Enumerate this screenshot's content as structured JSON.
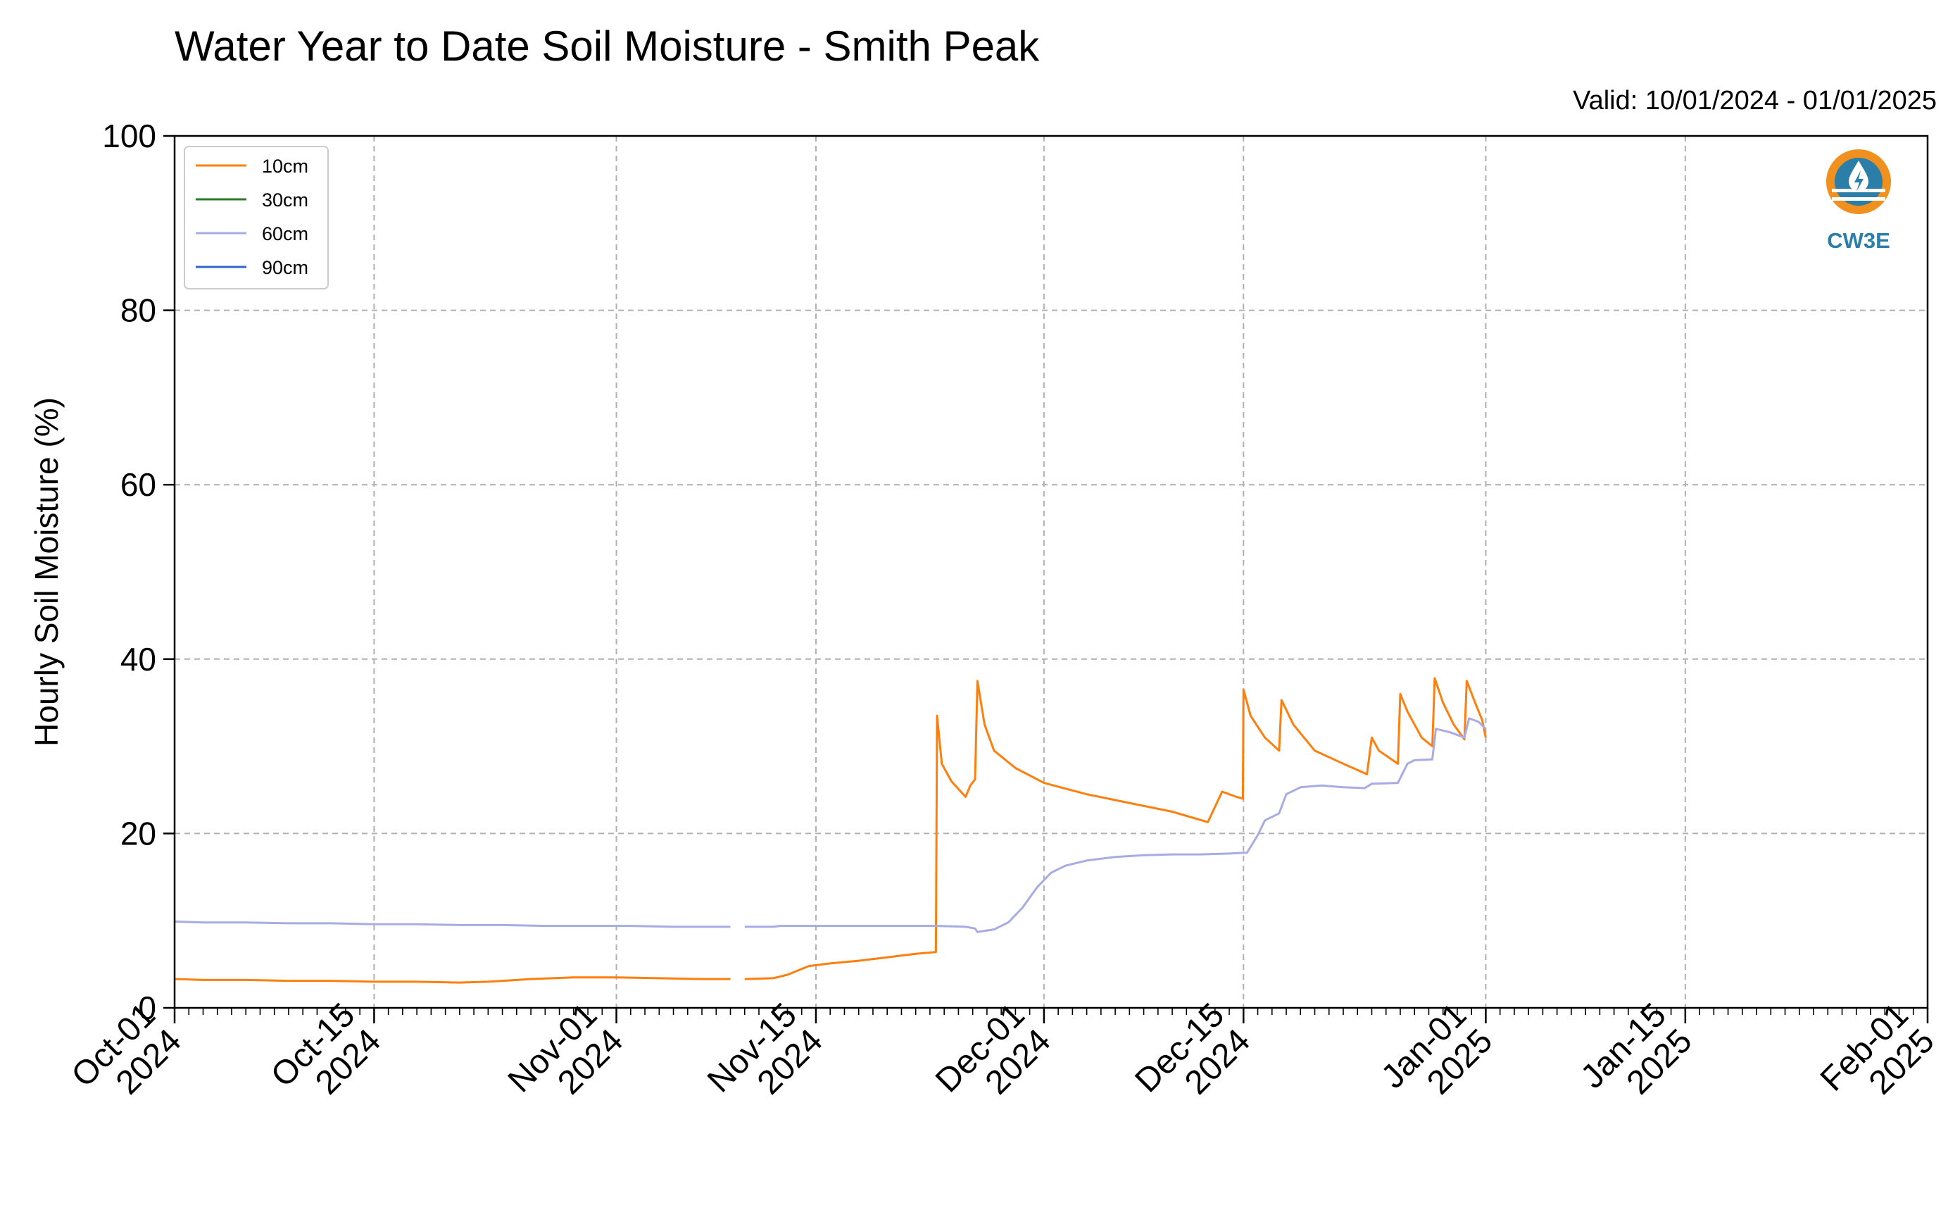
{
  "chart_data": {
    "type": "line",
    "title": "Water Year to Date Soil Moisture - Smith Peak",
    "valid_label": "Valid: 10/01/2024 - 01/01/2025",
    "ylabel": "Hourly Soil Moisture (%)",
    "xlabel": "",
    "ylim": [
      0,
      100
    ],
    "y_ticks": [
      0,
      20,
      40,
      60,
      80,
      100
    ],
    "xlim": [
      "2024-10-01",
      "2025-02-01"
    ],
    "x_ticks": [
      {
        "date": "2024-10-01",
        "line1": "Oct-01",
        "line2": "2024"
      },
      {
        "date": "2024-10-15",
        "line1": "Oct-15",
        "line2": "2024"
      },
      {
        "date": "2024-11-01",
        "line1": "Nov-01",
        "line2": "2024"
      },
      {
        "date": "2024-11-15",
        "line1": "Nov-15",
        "line2": "2024"
      },
      {
        "date": "2024-12-01",
        "line1": "Dec-01",
        "line2": "2024"
      },
      {
        "date": "2024-12-15",
        "line1": "Dec-15",
        "line2": "2024"
      },
      {
        "date": "2025-01-01",
        "line1": "Jan-01",
        "line2": "2025"
      },
      {
        "date": "2025-01-15",
        "line1": "Jan-15",
        "line2": "2025"
      },
      {
        "date": "2025-02-01",
        "line1": "Feb-01",
        "line2": "2025"
      }
    ],
    "grid": true,
    "legend_position": "top-left",
    "series": [
      {
        "name": "10cm",
        "color": "#ff7f0e",
        "points": [
          [
            "2024-10-01T00",
            3.3
          ],
          [
            "2024-10-03T00",
            3.2
          ],
          [
            "2024-10-06T00",
            3.2
          ],
          [
            "2024-10-09T00",
            3.1
          ],
          [
            "2024-10-12T00",
            3.1
          ],
          [
            "2024-10-15T00",
            3.0
          ],
          [
            "2024-10-18T00",
            3.0
          ],
          [
            "2024-10-21T00",
            2.9
          ],
          [
            "2024-10-23T00",
            3.0
          ],
          [
            "2024-10-26T00",
            3.3
          ],
          [
            "2024-10-29T00",
            3.5
          ],
          [
            "2024-11-01T00",
            3.5
          ],
          [
            "2024-11-04T00",
            3.4
          ],
          [
            "2024-11-07T00",
            3.3
          ],
          [
            "2024-11-09T00",
            3.3
          ],
          null,
          [
            "2024-11-10T00",
            3.3
          ],
          [
            "2024-11-12T00",
            3.4
          ],
          [
            "2024-11-13T00",
            3.8
          ],
          [
            "2024-11-14T12",
            4.8
          ],
          [
            "2024-11-16T00",
            5.1
          ],
          [
            "2024-11-18T00",
            5.4
          ],
          [
            "2024-11-20T00",
            5.8
          ],
          [
            "2024-11-22T00",
            6.2
          ],
          [
            "2024-11-23T10",
            6.4
          ],
          [
            "2024-11-23T12",
            33.5
          ],
          [
            "2024-11-23T20",
            28.0
          ],
          [
            "2024-11-24T12",
            26.0
          ],
          [
            "2024-11-25T12",
            24.2
          ],
          [
            "2024-11-25T20",
            25.5
          ],
          [
            "2024-11-26T04",
            26.2
          ],
          [
            "2024-11-26T08",
            37.5
          ],
          [
            "2024-11-26T20",
            32.5
          ],
          [
            "2024-11-27T12",
            29.5
          ],
          [
            "2024-11-29T00",
            27.5
          ],
          [
            "2024-12-01T00",
            25.8
          ],
          [
            "2024-12-04T00",
            24.5
          ],
          [
            "2024-12-07T00",
            23.5
          ],
          [
            "2024-12-10T00",
            22.5
          ],
          [
            "2024-12-12T12",
            21.3
          ],
          [
            "2024-12-13T12",
            24.8
          ],
          [
            "2024-12-14T12",
            24.2
          ],
          [
            "2024-12-14T23",
            24.0
          ],
          [
            "2024-12-15T00",
            36.5
          ],
          [
            "2024-12-15T12",
            33.5
          ],
          [
            "2024-12-16T12",
            31.0
          ],
          [
            "2024-12-17T12",
            29.5
          ],
          [
            "2024-12-17T16",
            35.3
          ],
          [
            "2024-12-18T12",
            32.5
          ],
          [
            "2024-12-20T00",
            29.5
          ],
          [
            "2024-12-22T00",
            28.0
          ],
          [
            "2024-12-23T16",
            26.8
          ],
          [
            "2024-12-24T00",
            31.0
          ],
          [
            "2024-12-24T12",
            29.5
          ],
          [
            "2024-12-25T20",
            28.0
          ],
          [
            "2024-12-26T00",
            36.0
          ],
          [
            "2024-12-26T12",
            34.0
          ],
          [
            "2024-12-27T12",
            31.0
          ],
          [
            "2024-12-28T06",
            30.0
          ],
          [
            "2024-12-28T10",
            37.8
          ],
          [
            "2024-12-29T00",
            35.0
          ],
          [
            "2024-12-29T18",
            32.5
          ],
          [
            "2024-12-30T12",
            30.8
          ],
          [
            "2024-12-30T16",
            37.5
          ],
          [
            "2024-12-31T06",
            35.0
          ],
          [
            "2024-12-31T18",
            33.0
          ],
          [
            "2025-01-01T00",
            31.0
          ]
        ]
      },
      {
        "name": "30cm",
        "color": "#2a7a2a",
        "points": []
      },
      {
        "name": "60cm",
        "color": "#a7ace2",
        "points": [
          [
            "2024-10-01T00",
            9.9
          ],
          [
            "2024-10-03T00",
            9.8
          ],
          [
            "2024-10-06T00",
            9.8
          ],
          [
            "2024-10-09T00",
            9.7
          ],
          [
            "2024-10-12T00",
            9.7
          ],
          [
            "2024-10-15T00",
            9.6
          ],
          [
            "2024-10-18T00",
            9.6
          ],
          [
            "2024-10-21T00",
            9.5
          ],
          [
            "2024-10-24T00",
            9.5
          ],
          [
            "2024-10-27T00",
            9.4
          ],
          [
            "2024-10-30T00",
            9.4
          ],
          [
            "2024-11-02T00",
            9.4
          ],
          [
            "2024-11-05T00",
            9.3
          ],
          [
            "2024-11-07T00",
            9.3
          ],
          [
            "2024-11-09T00",
            9.3
          ],
          null,
          [
            "2024-11-10T00",
            9.3
          ],
          [
            "2024-11-12T00",
            9.3
          ],
          [
            "2024-11-12T12",
            9.4
          ],
          [
            "2024-11-15T00",
            9.4
          ],
          [
            "2024-11-18T00",
            9.4
          ],
          [
            "2024-11-21T00",
            9.4
          ],
          [
            "2024-11-23T12",
            9.4
          ],
          [
            "2024-11-25T12",
            9.3
          ],
          [
            "2024-11-26T04",
            9.1
          ],
          [
            "2024-11-26T08",
            8.7
          ],
          [
            "2024-11-27T12",
            9.0
          ],
          [
            "2024-11-28T12",
            9.8
          ],
          [
            "2024-11-29T12",
            11.5
          ],
          [
            "2024-11-30T12",
            13.8
          ],
          [
            "2024-12-01T12",
            15.5
          ],
          [
            "2024-12-02T12",
            16.3
          ],
          [
            "2024-12-04T00",
            16.9
          ],
          [
            "2024-12-06T00",
            17.3
          ],
          [
            "2024-12-08T00",
            17.5
          ],
          [
            "2024-12-10T00",
            17.6
          ],
          [
            "2024-12-12T00",
            17.6
          ],
          [
            "2024-12-14T00",
            17.7
          ],
          [
            "2024-12-15T06",
            17.8
          ],
          [
            "2024-12-16T00",
            19.8
          ],
          [
            "2024-12-16T12",
            21.5
          ],
          [
            "2024-12-17T12",
            22.3
          ],
          [
            "2024-12-18T00",
            24.5
          ],
          [
            "2024-12-19T00",
            25.3
          ],
          [
            "2024-12-20T12",
            25.5
          ],
          [
            "2024-12-22T00",
            25.3
          ],
          [
            "2024-12-23T12",
            25.2
          ],
          [
            "2024-12-24T00",
            25.7
          ],
          [
            "2024-12-25T20",
            25.8
          ],
          [
            "2024-12-26T12",
            28.0
          ],
          [
            "2024-12-27T00",
            28.4
          ],
          [
            "2024-12-28T06",
            28.5
          ],
          [
            "2024-12-28T12",
            32.0
          ],
          [
            "2024-12-29T12",
            31.6
          ],
          [
            "2024-12-30T12",
            31.0
          ],
          [
            "2024-12-30T20",
            33.2
          ],
          [
            "2024-12-31T12",
            32.8
          ],
          [
            "2025-01-01T00",
            32.0
          ]
        ]
      },
      {
        "name": "90cm",
        "color": "#2f64c8",
        "points": []
      }
    ]
  },
  "logo": {
    "text": "CW3E",
    "ring_color": "#f0901e",
    "water_color": "#2a7ea8"
  }
}
